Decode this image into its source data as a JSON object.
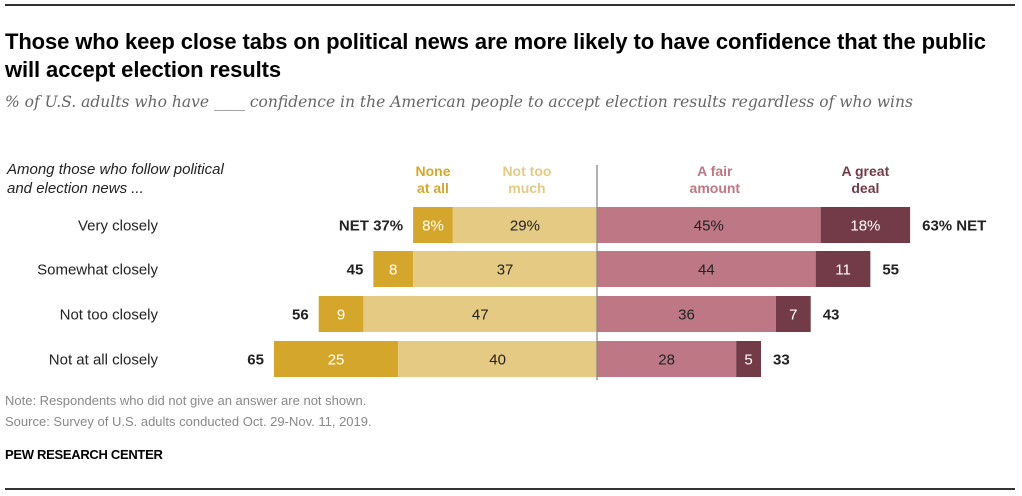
{
  "title": "Those who keep close tabs on political news are more likely to have confidence that the public will accept election results",
  "subtitle": "% of U.S. adults who have ____ confidence in the American people to accept election results regardless of who wins",
  "row_header": [
    "Among those who follow political",
    "and election news ..."
  ],
  "colors": {
    "none_at_all": "#d4a72c",
    "not_too_much": "#e5ca84",
    "a_fair_amount": "#bd7785",
    "a_great_deal": "#733b48",
    "center_line": "#888888",
    "text_dark": "#222222",
    "text_light": "#ffffff"
  },
  "chart_data": {
    "type": "bar",
    "orientation": "horizontal-diverging",
    "title": "Those who keep close tabs on political news are more likely to have confidence that the public will accept election results",
    "subtitle": "% of U.S. adults who have ____ confidence in the American people to accept election results regardless of who wins",
    "categories": [
      "Very closely",
      "Somewhat closely",
      "Not too closely",
      "Not at all closely"
    ],
    "series": [
      {
        "name": "None at all",
        "side": "negative",
        "values": [
          8,
          8,
          9,
          25
        ],
        "labels": [
          "8%",
          "8",
          "9",
          "25"
        ]
      },
      {
        "name": "Not too much",
        "side": "negative",
        "values": [
          29,
          37,
          47,
          40
        ],
        "labels": [
          "29%",
          "37",
          "47",
          "40"
        ]
      },
      {
        "name": "A fair amount",
        "side": "positive",
        "values": [
          45,
          44,
          36,
          28
        ],
        "labels": [
          "45%",
          "44",
          "36",
          "28"
        ]
      },
      {
        "name": "A great deal",
        "side": "positive",
        "values": [
          18,
          11,
          7,
          5
        ],
        "labels": [
          "18%",
          "11",
          "7",
          "5"
        ]
      }
    ],
    "net_negative": {
      "values": [
        37,
        45,
        56,
        65
      ],
      "labels": [
        "NET  37%",
        "45",
        "56",
        "65"
      ]
    },
    "net_positive": {
      "values": [
        63,
        55,
        43,
        33
      ],
      "labels": [
        "63%  NET",
        "55",
        "43",
        "33"
      ]
    },
    "legend": [
      {
        "name": "None at all",
        "lines": [
          "None",
          "at all"
        ]
      },
      {
        "name": "Not too much",
        "lines": [
          "Not too",
          "much"
        ]
      },
      {
        "name": "A fair amount",
        "lines": [
          "A fair",
          "amount"
        ]
      },
      {
        "name": "A great deal",
        "lines": [
          "A great",
          "deal"
        ]
      }
    ],
    "legend_placement": "top",
    "xlabel": "",
    "ylabel": "",
    "grid": false
  },
  "notes": {
    "note": "Note: Respondents who did not give an answer are not shown.",
    "source": "Source: Survey of U.S. adults conducted Oct. 29-Nov. 11, 2019."
  },
  "brand": "PEW RESEARCH CENTER"
}
